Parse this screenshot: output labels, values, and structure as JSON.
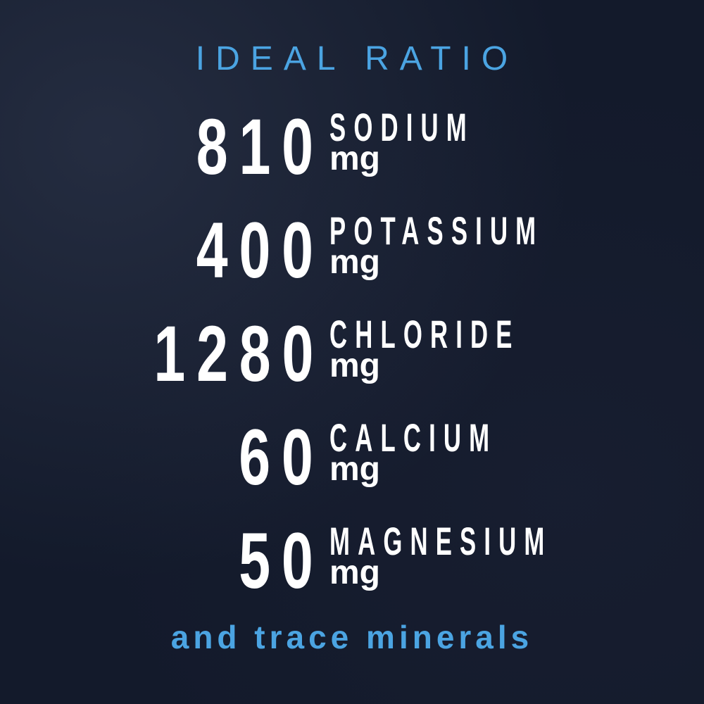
{
  "title": "IDEAL RATIO",
  "minerals": [
    {
      "amount": "810",
      "name": "SODIUM",
      "unit": "mg"
    },
    {
      "amount": "400",
      "name": "POTASSIUM",
      "unit": "mg"
    },
    {
      "amount": "1280",
      "name": "CHLORIDE",
      "unit": "mg"
    },
    {
      "amount": "60",
      "name": "CALCIUM",
      "unit": "mg"
    },
    {
      "amount": "50",
      "name": "MAGNESIUM",
      "unit": "mg"
    }
  ],
  "footer": "and trace minerals",
  "colors": {
    "background": "#131a2b",
    "accent": "#4ba4e2",
    "text": "#ffffff"
  }
}
